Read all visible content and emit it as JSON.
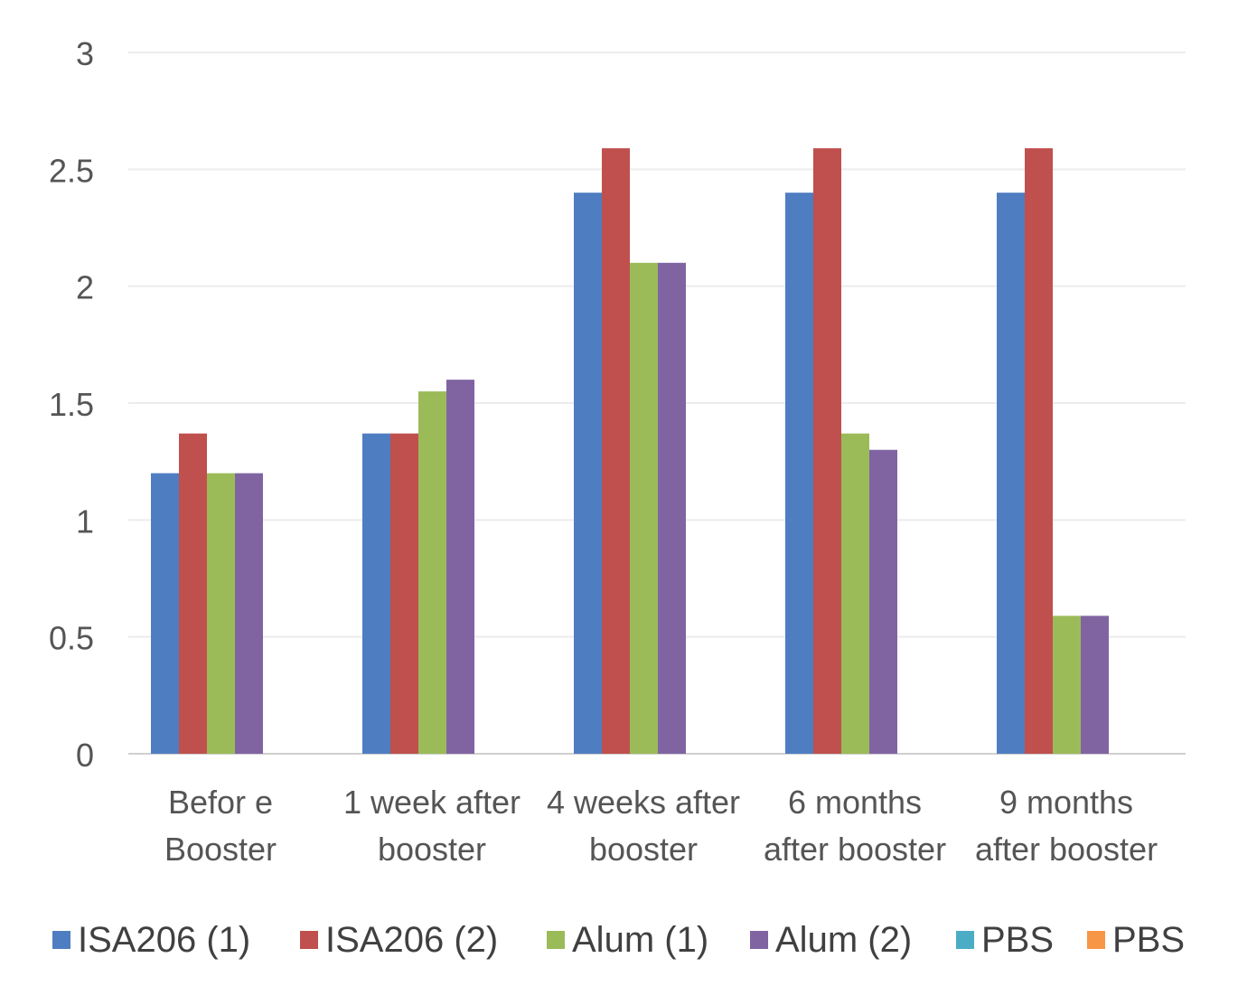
{
  "chart_data": {
    "type": "bar",
    "title": "",
    "xlabel": "",
    "ylabel": "",
    "ylim": [
      0,
      3
    ],
    "yticks": [
      "0",
      "0.5",
      "1",
      "1.5",
      "2",
      "2.5",
      "3"
    ],
    "grid": true,
    "legend_position": "bottom",
    "categories": [
      [
        "Befor e",
        "Booster"
      ],
      [
        "1 week after",
        "booster"
      ],
      [
        "4 weeks after",
        "booster"
      ],
      [
        "6 months",
        "after booster"
      ],
      [
        "9 months",
        "after booster"
      ]
    ],
    "series": [
      {
        "name": "ISA206 (1)",
        "color": "#4F7DC1",
        "values": [
          1.2,
          1.37,
          2.4,
          2.4,
          2.4
        ]
      },
      {
        "name": "ISA206 (2)",
        "color": "#C0504D",
        "values": [
          1.37,
          1.37,
          2.59,
          2.59,
          2.59
        ]
      },
      {
        "name": "Alum (1)",
        "color": "#9BBB59",
        "values": [
          1.2,
          1.55,
          2.1,
          1.37,
          0.59
        ]
      },
      {
        "name": "Alum (2)",
        "color": "#8064A2",
        "values": [
          1.2,
          1.6,
          2.1,
          1.3,
          0.59
        ]
      },
      {
        "name": "PBS",
        "color": "#4BACC6",
        "values": [
          0,
          0,
          0,
          0,
          0
        ]
      },
      {
        "name": "PBS",
        "color": "#F79646",
        "values": [
          0,
          0,
          0,
          0,
          0
        ]
      }
    ]
  }
}
